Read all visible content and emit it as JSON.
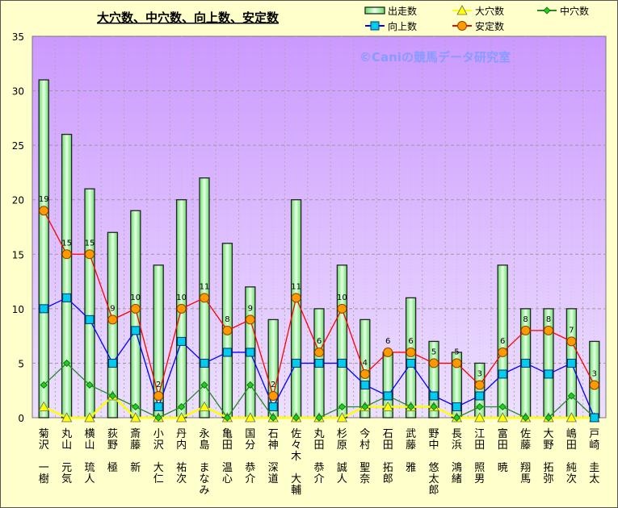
{
  "chart_data": {
    "type": "bar+line",
    "title": "大穴数、中穴数、向上数、安定数",
    "watermark": "©Caniの競馬データ研究室",
    "ylim": [
      0,
      35
    ],
    "yticks": [
      0,
      5,
      10,
      15,
      20,
      25,
      30,
      35
    ],
    "grid": true,
    "legend_placement": "top-right",
    "categories": [
      "菊沢 一樹",
      "丸山 元気",
      "横山 琉人",
      "荻野 極",
      "斎藤 新",
      "小沢 大仁",
      "丹内 祐次",
      "永島 まなみ",
      "亀田 温心",
      "国分 恭介",
      "石神 深道",
      "佐々木 大輔",
      "丸田 恭介",
      "杉原 誠人",
      "今村 聖奈",
      "石田 拓郎",
      "武藤 雅",
      "野中 悠太郎",
      "長浜 鴻緒",
      "江田 照男",
      "富田 暁",
      "佐藤 翔馬",
      "大野 拓弥",
      "嶋田 純次",
      "戸崎 圭太"
    ],
    "series": [
      {
        "name": "出走数",
        "kind": "bar",
        "color": "#99ff99",
        "values": [
          31,
          26,
          21,
          17,
          19,
          14,
          20,
          22,
          16,
          12,
          9,
          20,
          10,
          14,
          9,
          6,
          11,
          7,
          6,
          5,
          14,
          10,
          10,
          10,
          7
        ]
      },
      {
        "name": "大穴数",
        "kind": "line",
        "marker": "triangle",
        "color": "#ffff00",
        "values": [
          1,
          0,
          0,
          2,
          0,
          0,
          0,
          1,
          0,
          0,
          0,
          0,
          0,
          0,
          1,
          1,
          1,
          1,
          0,
          0,
          0,
          0,
          0,
          0,
          0
        ]
      },
      {
        "name": "中穴数",
        "kind": "line",
        "marker": "diamond",
        "color": "#228b22",
        "values": [
          3,
          5,
          3,
          2,
          1,
          0,
          1,
          3,
          0,
          3,
          0,
          0,
          0,
          1,
          1,
          2,
          1,
          1,
          0,
          1,
          1,
          0,
          0,
          2,
          0
        ]
      },
      {
        "name": "向上数",
        "kind": "line",
        "marker": "square",
        "color": "#0000ff",
        "values": [
          10,
          11,
          9,
          5,
          8,
          1,
          7,
          5,
          6,
          6,
          1,
          5,
          5,
          5,
          3,
          2,
          5,
          2,
          1,
          2,
          4,
          5,
          4,
          5,
          0
        ]
      },
      {
        "name": "安定数",
        "kind": "line",
        "marker": "circle",
        "color": "#ff0000",
        "values": [
          19,
          15,
          15,
          9,
          10,
          2,
          10,
          11,
          8,
          9,
          2,
          11,
          6,
          10,
          4,
          6,
          6,
          5,
          5,
          3,
          6,
          8,
          8,
          7,
          3
        ],
        "data_labels": true
      }
    ]
  }
}
